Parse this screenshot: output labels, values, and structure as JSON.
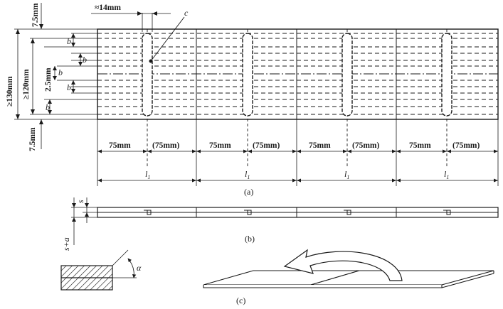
{
  "figure_a": {
    "label": "(a)",
    "top_edge_dim": "7.5mm",
    "bottom_edge_dim": "7.5mm",
    "outer_height_dim": "≥130mm",
    "inner_height_dim": "≥120mm",
    "center_gap_dim": "2.5mm",
    "strip_label": "b",
    "slot_width_dim": "≈14mm",
    "callout_label": "c",
    "segment_dim": "75mm",
    "segment_dim_paren": "(75mm)",
    "length_label": "l",
    "length_subscript": "1"
  },
  "figure_b": {
    "label": "(b)",
    "thickness_label": "s",
    "thickness_plus_label": "s+a"
  },
  "figure_c": {
    "label": "(c)",
    "angle_label": "α"
  }
}
